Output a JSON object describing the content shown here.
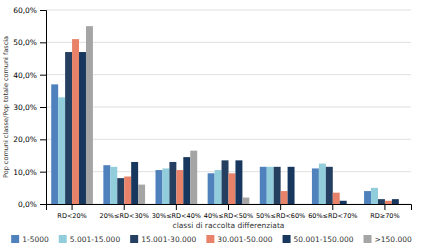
{
  "chart_data": {
    "type": "bar",
    "xlabel": "classi di raccolta differenziata",
    "ylabel": "Pop comuni classe/Pop totale comuni fascia",
    "categories": [
      "RD<20%",
      "20%≤RD<30%",
      "30%≤RD<40%",
      "40%≤RD<50%",
      "50%≤RD<60%",
      "60%≤RD<70%",
      "RD≥70%"
    ],
    "series": [
      {
        "name": "1-5000",
        "color": "#4f81bd",
        "values": [
          37.0,
          12.0,
          10.5,
          9.5,
          11.5,
          11.0,
          4.0
        ]
      },
      {
        "name": "5.001-15.000",
        "color": "#92cddc",
        "values": [
          33.0,
          11.5,
          11.0,
          10.5,
          11.5,
          12.5,
          5.0
        ]
      },
      {
        "name": "15.001-30.000",
        "color": "#243f60",
        "values": [
          47.0,
          8.0,
          13.0,
          13.5,
          11.5,
          11.5,
          1.5
        ]
      },
      {
        "name": "30.001-50.000",
        "color": "#e8836a",
        "values": [
          51.0,
          8.5,
          10.5,
          9.5,
          4.0,
          3.5,
          1.0
        ]
      },
      {
        "name": "50.001-150.000",
        "color": "#17375e",
        "values": [
          47.0,
          13.0,
          14.5,
          13.5,
          11.5,
          1.0,
          1.5
        ]
      },
      {
        "name": ">150.000",
        "color": "#a5a5a5",
        "values": [
          55.0,
          6.0,
          16.5,
          2.0,
          0.0,
          0.0,
          0.0
        ]
      }
    ],
    "ylim": [
      0,
      60
    ],
    "yticks": [
      {
        "value": 0,
        "label": "0,0%"
      },
      {
        "value": 10,
        "label": "10,0%"
      },
      {
        "value": 20,
        "label": "20,0%"
      },
      {
        "value": 30,
        "label": "30,0%"
      },
      {
        "value": 40,
        "label": "40,0%"
      },
      {
        "value": 50,
        "label": "50,0%"
      },
      {
        "value": 60,
        "label": "60,0%"
      }
    ],
    "grid": true,
    "legend": "bottom"
  }
}
